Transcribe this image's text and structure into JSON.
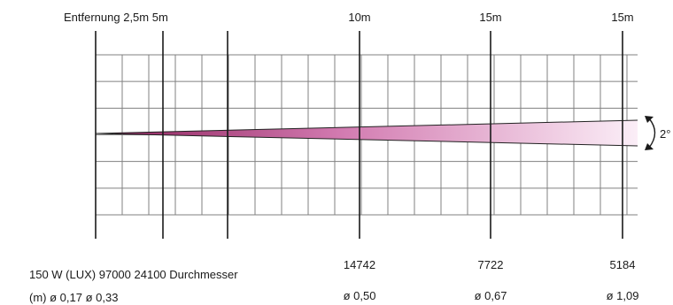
{
  "header": {
    "distance_label": "Entfernung 2,5m 5m",
    "d10": "10m",
    "d15a": "15m",
    "d15b": "15m"
  },
  "angle_label": "2°",
  "footer": {
    "lux_label": "150 W (LUX) 97000 24100 Durchmesser",
    "lux_10": "14742",
    "lux_15a": "7722",
    "lux_15b": "5184",
    "diam_label": "(m) ø 0,17 ø 0,33",
    "diam_10": "ø 0,50",
    "diam_15a": "ø 0,67",
    "diam_15b": "ø 1,09"
  },
  "colors": {
    "beam_start": "#8c1f5a",
    "beam_mid": "#d27ab0",
    "beam_end": "#fbeef7",
    "grid": "#808080",
    "major_line": "#1a1a1a"
  }
}
